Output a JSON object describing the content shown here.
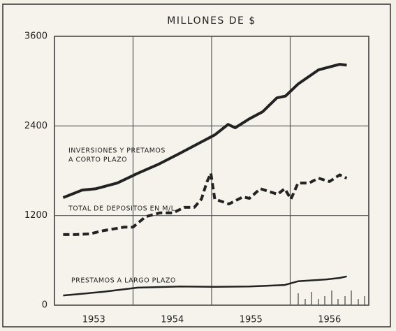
{
  "chart_data": {
    "type": "line",
    "title": "MILLONES DE $",
    "xlim": [
      1953,
      1957
    ],
    "xticks": [
      {
        "value": 1953.5,
        "label": "1953"
      },
      {
        "value": 1954.5,
        "label": "1954"
      },
      {
        "value": 1955.5,
        "label": "1955"
      },
      {
        "value": 1956.5,
        "label": "1956"
      }
    ],
    "xgrid": [
      1954,
      1955,
      1956
    ],
    "ylim": [
      0,
      3600
    ],
    "yticks": [
      0,
      1200,
      2400,
      3600
    ],
    "grid": true,
    "annotations": [
      "INVERSIONES Y PRETAMOS",
      "A CORTO PLAZO",
      "TOTAL DE DEPOSITOS EN M/L",
      "PRESTAMOS A LARGO PLAZO"
    ],
    "series": [
      {
        "name": "INVERSIONES Y PRETAMOS A CORTO PLAZO",
        "color": "#222222",
        "style": "solid",
        "width": 4,
        "x": [
          1953.11,
          1953.35,
          1953.53,
          1953.8,
          1954.06,
          1954.33,
          1954.59,
          1954.86,
          1955.04,
          1955.21,
          1955.3,
          1955.48,
          1955.65,
          1955.83,
          1955.94,
          1956.1,
          1956.36,
          1956.63,
          1956.72
        ],
        "values": [
          1440,
          1540,
          1560,
          1635,
          1765,
          1890,
          2030,
          2180,
          2280,
          2420,
          2375,
          2495,
          2590,
          2775,
          2800,
          2960,
          3150,
          3225,
          3215
        ]
      },
      {
        "name": "TOTAL DE DEPOSITOS EN M/L",
        "color": "#222222",
        "style": "dashed",
        "width": 4,
        "x": [
          1953.11,
          1953.27,
          1953.45,
          1953.63,
          1953.89,
          1954.0,
          1954.16,
          1954.34,
          1954.51,
          1954.65,
          1954.78,
          1954.87,
          1954.94,
          1954.99,
          1955.04,
          1955.22,
          1955.4,
          1955.48,
          1955.62,
          1955.75,
          1955.84,
          1955.93,
          1956.01,
          1956.1,
          1956.24,
          1956.36,
          1956.5,
          1956.63,
          1956.72
        ],
        "values": [
          945,
          945,
          955,
          1000,
          1045,
          1045,
          1185,
          1235,
          1235,
          1310,
          1310,
          1420,
          1650,
          1765,
          1420,
          1355,
          1450,
          1430,
          1560,
          1515,
          1485,
          1560,
          1420,
          1635,
          1635,
          1700,
          1655,
          1745,
          1700
        ]
      },
      {
        "name": "PRESTAMOS A LARGO PLAZO",
        "color": "#222222",
        "style": "solid",
        "width": 2.5,
        "x": [
          1953.11,
          1953.63,
          1954.06,
          1954.59,
          1955.04,
          1955.48,
          1955.93,
          1956.1,
          1956.46,
          1956.63,
          1956.72
        ],
        "values": [
          130,
          180,
          235,
          250,
          245,
          250,
          270,
          320,
          345,
          365,
          385
        ]
      }
    ]
  }
}
